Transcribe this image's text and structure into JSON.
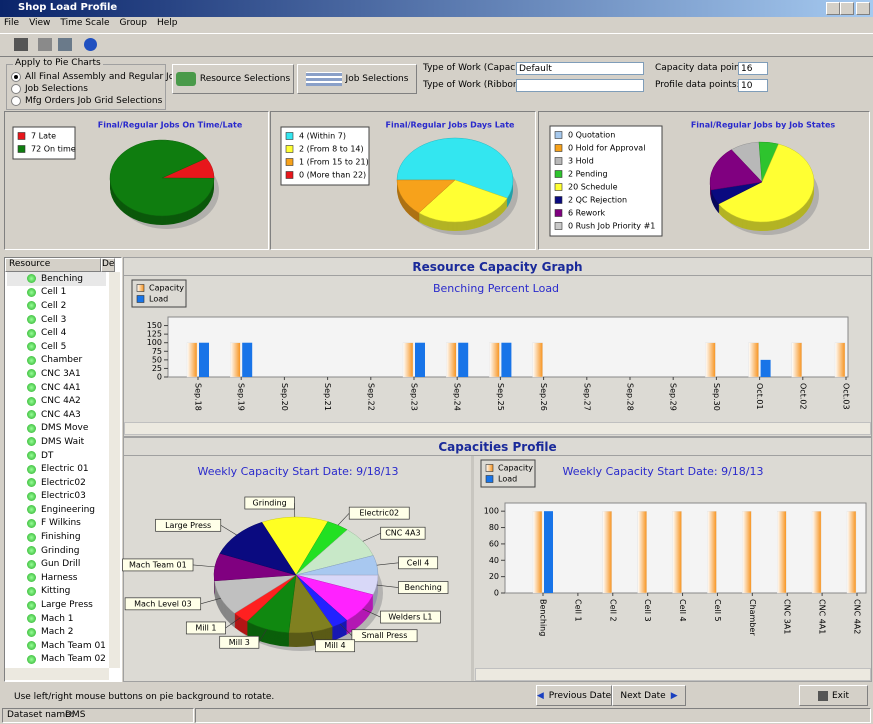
{
  "window": {
    "title": "Shop Load Profile"
  },
  "menu": [
    "File",
    "View",
    "Time Scale",
    "Group",
    "Help"
  ],
  "apply_group": {
    "label": "Apply to Pie Charts",
    "options": [
      "All Final Assembly and Regular Jobs",
      "Job Selections",
      "Mfg Orders Job Grid Selections"
    ],
    "selected": 0
  },
  "buttons": {
    "resource_selections": "Resource Selections",
    "job_selections": "Job Selections"
  },
  "work_type": {
    "capacity_label": "Type of Work (Capacity):",
    "capacity_value": "Default",
    "ribbon_label": "Type of Work (Ribbon):"
  },
  "data_points": {
    "capacity_label": "Capacity data points:",
    "capacity_value": 16,
    "profile_label": "Profile data points:",
    "profile_value": 10
  },
  "resource_list": {
    "headers": [
      "Resource",
      "Desc"
    ],
    "items": [
      "Benching",
      "Cell 1",
      "Cell 2",
      "Cell 3",
      "Cell 4",
      "Cell 5",
      "Chamber",
      "CNC 3A1",
      "CNC 4A1",
      "CNC 4A2",
      "CNC 4A3",
      "DMS Move",
      "DMS Wait",
      "DT",
      "Electric 01",
      "Electric02",
      "Electric03",
      "Engineering",
      "F Wilkins",
      "Finishing",
      "Grinding",
      "Gun Drill",
      "Harness",
      "Kitting",
      "Large Press",
      "Mach 1",
      "Mach 2",
      "Mach Team 01",
      "Mach Team 02"
    ]
  },
  "panels": {
    "capacity_graph": "Resource Capacity Graph",
    "capacities_profile": "Capacities Profile"
  },
  "footer": {
    "hint": "Use left/right mouse buttons on pie background to rotate.",
    "previous": "Previous Date",
    "next": "Next Date",
    "exit": "Exit",
    "dataset_label": "Dataset name:",
    "dataset_value": "DMS"
  },
  "chart_data": [
    {
      "type": "pie",
      "title": "Final/Regular Jobs On Time/Late",
      "categories": [
        "7 Late",
        "72 On time"
      ],
      "values": [
        7,
        72
      ],
      "colors": [
        "#e8161b",
        "#0f7d0f"
      ]
    },
    {
      "type": "pie",
      "title": "Final/Regular Jobs Days Late",
      "categories": [
        "4 (Within 7)",
        "2 (From 8 to 14)",
        "1 (From 15 to 21)",
        "0 (More than 22)"
      ],
      "values": [
        4,
        2,
        1,
        0
      ],
      "colors": [
        "#33e6f0",
        "#ffff33",
        "#f7a21b",
        "#e8161b"
      ]
    },
    {
      "type": "pie",
      "title": "Final/Regular Jobs by Job States",
      "categories": [
        "0 Quotation",
        "0 Hold for Approval",
        "3 Hold",
        "2 Pending",
        "20 Schedule",
        "2 QC Rejection",
        "6 Rework",
        "0 Rush Job Priority #1"
      ],
      "values": [
        0,
        0,
        3,
        2,
        20,
        2,
        6,
        0
      ],
      "colors": [
        "#a6c8ec",
        "#f7a21b",
        "#b8b8b8",
        "#2ec42e",
        "#ffff33",
        "#0a0a80",
        "#800080",
        "#c8c8c8"
      ]
    },
    {
      "type": "bar",
      "title": "Benching Percent Load",
      "categories": [
        "Sep.18",
        "Sep.19",
        "Sep.20",
        "Sep.21",
        "Sep.22",
        "Sep.23",
        "Sep.24",
        "Sep.25",
        "Sep.26",
        "Sep.27",
        "Sep.28",
        "Sep.29",
        "Sep.30",
        "Oct.01",
        "Oct.02",
        "Oct.03"
      ],
      "series": [
        {
          "name": "Capacity",
          "color": "#f7931e",
          "values": [
            100,
            100,
            0,
            0,
            0,
            100,
            100,
            100,
            100,
            0,
            0,
            0,
            100,
            100,
            100,
            100
          ]
        },
        {
          "name": "Load",
          "color": "#1874e8",
          "values": [
            100,
            100,
            0,
            0,
            0,
            100,
            100,
            100,
            0,
            0,
            0,
            0,
            0,
            50,
            0,
            0
          ]
        }
      ],
      "ylim": [
        0,
        175
      ],
      "yticks": [
        0,
        25,
        50,
        75,
        100,
        125,
        150
      ]
    },
    {
      "type": "pie",
      "title": "Weekly Capacity  Start Date: 9/18/13",
      "categories": [
        "Grinding",
        "Electric02",
        "CNC 4A3",
        "Cell 4",
        "Benching",
        "Welders L1",
        "Small Press",
        "Mill 4",
        "Mill 3",
        "Mill 1",
        "Mach Level 03",
        "Mach Team 01",
        "Large Press"
      ],
      "values": [
        12,
        4,
        8,
        5,
        5,
        8,
        3,
        8,
        8,
        3,
        9,
        7,
        11
      ],
      "colors": [
        "#ffff22",
        "#22e022",
        "#c8e8c8",
        "#a8c8f0",
        "#d8d8f8",
        "#ff22ff",
        "#2222ff",
        "#808020",
        "#108810",
        "#ff2020",
        "#c0c0c0",
        "#800080",
        "#0a0a80"
      ]
    },
    {
      "type": "bar",
      "title": "Weekly Capacity  Start Date: 9/18/13",
      "categories": [
        "Benching",
        "Cell 1",
        "Cell 2",
        "Cell 3",
        "Cell 4",
        "Cell 5",
        "Chamber",
        "CNC 3A1",
        "CNC 4A1",
        "CNC 4A2"
      ],
      "series": [
        {
          "name": "Capacity",
          "color": "#f7931e",
          "values": [
            100,
            0,
            100,
            100,
            100,
            100,
            100,
            100,
            100,
            100
          ]
        },
        {
          "name": "Load",
          "color": "#1874e8",
          "values": [
            100,
            0,
            0,
            0,
            0,
            0,
            0,
            0,
            0,
            0
          ]
        }
      ],
      "ylim": [
        0,
        110
      ],
      "yticks": [
        0,
        20,
        40,
        60,
        80,
        100
      ]
    }
  ]
}
